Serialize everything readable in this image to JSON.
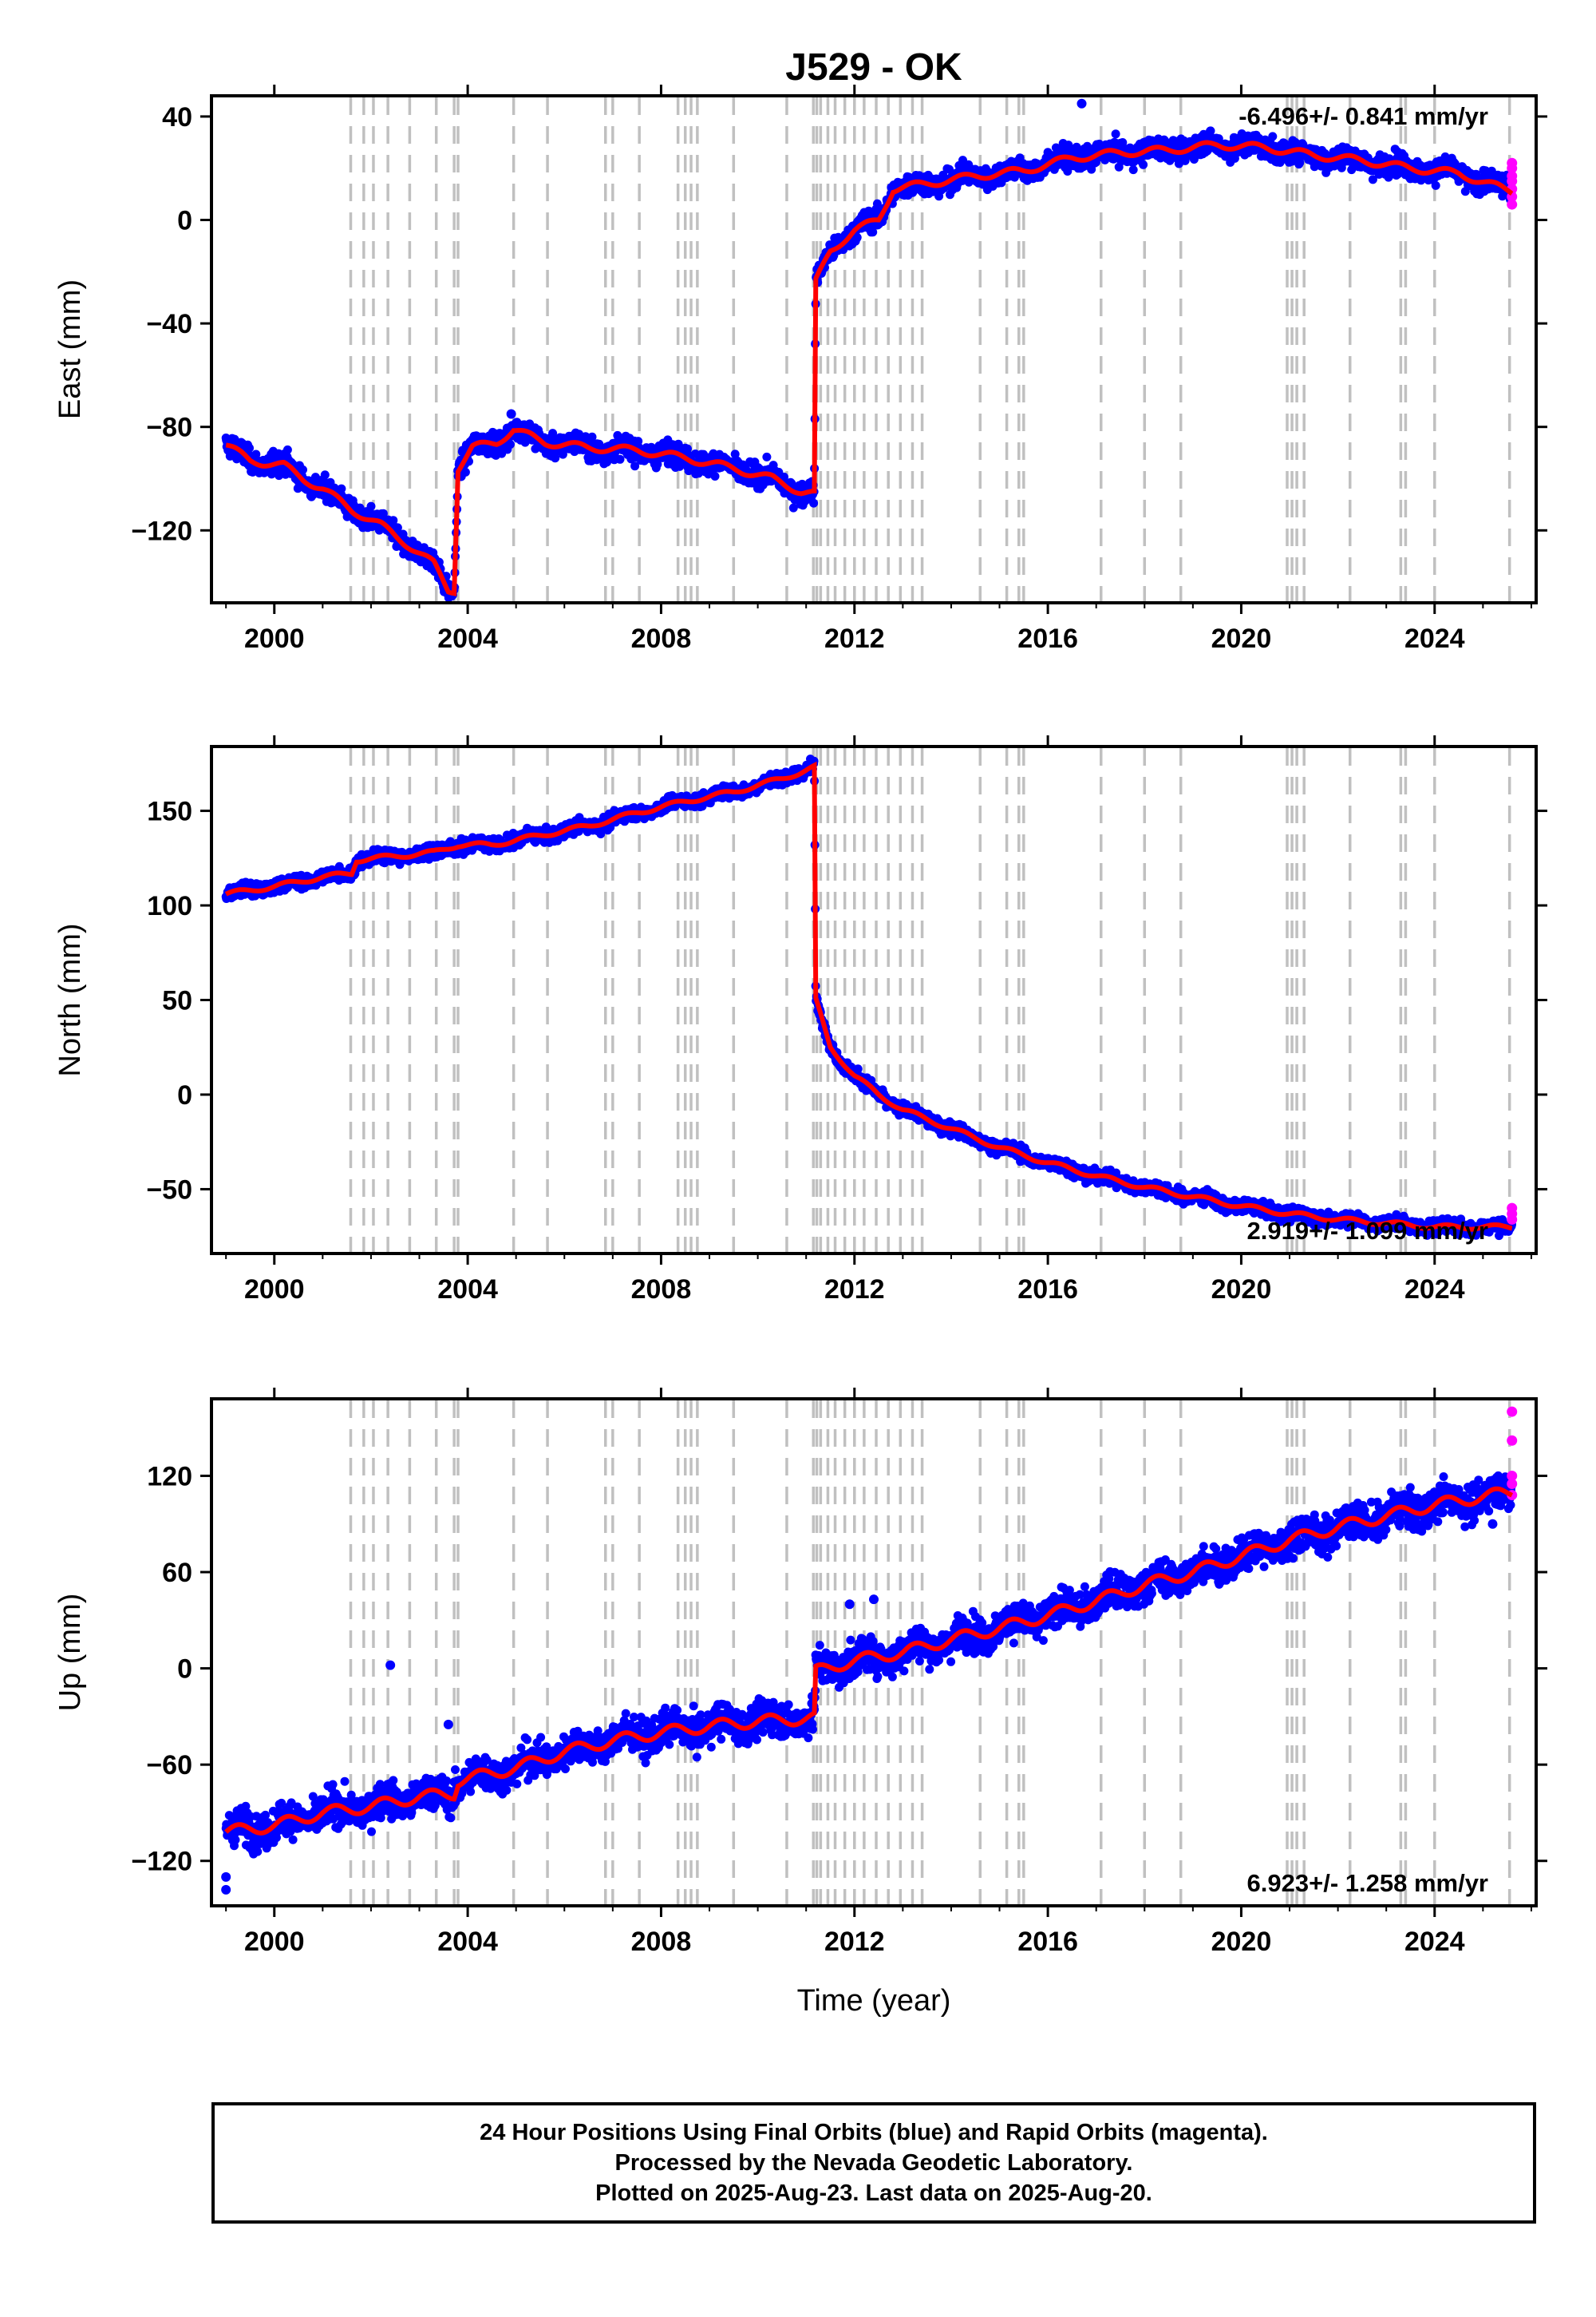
{
  "chart_data": {
    "type": "scatter",
    "title": "J529 - OK",
    "xlabel": "Time (year)",
    "xlim": [
      1998.7,
      2026.1
    ],
    "x_ticks": [
      2000,
      2004,
      2008,
      2012,
      2016,
      2020,
      2024
    ],
    "grid": false,
    "legend": "none",
    "series_colors": {
      "final_orbits": "#0000ff",
      "rapid_orbits": "#ff00ff",
      "model": "#ff0000",
      "event_lines": "#c0c0c0"
    },
    "event_lines": [
      2001.58,
      2001.85,
      2002.05,
      2002.35,
      2002.8,
      2003.35,
      2003.72,
      2003.8,
      2004.95,
      2005.65,
      2006.85,
      2007.0,
      2007.55,
      2008.35,
      2008.5,
      2008.62,
      2008.75,
      2009.5,
      2010.6,
      2011.15,
      2011.22,
      2011.3,
      2011.45,
      2011.6,
      2011.8,
      2012.0,
      2012.2,
      2012.45,
      2012.7,
      2012.95,
      2013.2,
      2013.4,
      2014.6,
      2015.15,
      2015.4,
      2015.5,
      2017.1,
      2018.0,
      2018.75,
      2020.95,
      2021.05,
      2021.15,
      2021.3,
      2022.25,
      2023.3,
      2023.4,
      2024.0,
      2025.55
    ],
    "panels": [
      {
        "id": "east",
        "ylabel": "East (mm)",
        "ylim": [
          -148,
          48
        ],
        "y_ticks": [
          40,
          0,
          -40,
          -80,
          -120
        ],
        "y_tick_labels": [
          "40",
          "0",
          "−40",
          "−80",
          "−120"
        ],
        "rate_label": "-6.496+/- 0.841 mm/yr",
        "rate_position": "top-right",
        "trend": [
          [
            1999.0,
            -87
          ],
          [
            1999.5,
            -93
          ],
          [
            2000.2,
            -95
          ],
          [
            2000.6,
            -100
          ],
          [
            2001.0,
            -104
          ],
          [
            2001.6,
            -112
          ],
          [
            2002.2,
            -118
          ],
          [
            2002.8,
            -126
          ],
          [
            2003.3,
            -133
          ],
          [
            2003.6,
            -143
          ],
          [
            2003.72,
            -143
          ],
          [
            2003.8,
            -96
          ],
          [
            2004.1,
            -88
          ],
          [
            2004.6,
            -86
          ],
          [
            2004.95,
            -81
          ],
          [
            2005.6,
            -86
          ],
          [
            2006.5,
            -88
          ],
          [
            2007.5,
            -89
          ],
          [
            2008.5,
            -92
          ],
          [
            2009.5,
            -96
          ],
          [
            2010.3,
            -100
          ],
          [
            2010.9,
            -105
          ],
          [
            2011.17,
            -106
          ],
          [
            2011.2,
            -24
          ],
          [
            2011.5,
            -12
          ],
          [
            2012.0,
            -4
          ],
          [
            2012.5,
            0
          ],
          [
            2012.8,
            12
          ],
          [
            2013.5,
            14
          ],
          [
            2014.5,
            17
          ],
          [
            2015.5,
            19
          ],
          [
            2016.5,
            24
          ],
          [
            2017.5,
            26
          ],
          [
            2018.5,
            27
          ],
          [
            2019.5,
            29
          ],
          [
            2020.5,
            28
          ],
          [
            2021.5,
            25
          ],
          [
            2022.5,
            23
          ],
          [
            2023.5,
            20
          ],
          [
            2024.5,
            18
          ],
          [
            2025.1,
            14
          ],
          [
            2025.6,
            11
          ]
        ],
        "noise": 3.5,
        "outliers": [
          [
            2016.7,
            45
          ],
          [
            2004.9,
            -75
          ]
        ],
        "rapid": [
          [
            2025.6,
            6
          ],
          [
            2025.6,
            9
          ],
          [
            2025.6,
            12
          ],
          [
            2025.6,
            15
          ],
          [
            2025.6,
            17
          ],
          [
            2025.6,
            20
          ],
          [
            2025.6,
            22
          ]
        ]
      },
      {
        "id": "north",
        "ylabel": "North (mm)",
        "ylim": [
          -84,
          184
        ],
        "y_ticks": [
          150,
          100,
          50,
          0,
          -50
        ],
        "y_tick_labels": [
          "150",
          "100",
          "50",
          "0",
          "−50"
        ],
        "rate_label": "2.919+/- 1.099 mm/yr",
        "rate_position": "bottom-right",
        "trend": [
          [
            1999.0,
            106
          ],
          [
            2000.0,
            110
          ],
          [
            2001.0,
            115
          ],
          [
            2001.6,
            117
          ],
          [
            2001.7,
            124
          ],
          [
            2002.5,
            126
          ],
          [
            2003.3,
            128
          ],
          [
            2003.8,
            132
          ],
          [
            2004.5,
            132
          ],
          [
            2005.5,
            137
          ],
          [
            2006.5,
            142
          ],
          [
            2007.5,
            149
          ],
          [
            2008.5,
            155
          ],
          [
            2009.5,
            160
          ],
          [
            2010.5,
            167
          ],
          [
            2011.17,
            173
          ],
          [
            2011.2,
            50
          ],
          [
            2011.5,
            25
          ],
          [
            2012.0,
            10
          ],
          [
            2012.5,
            0
          ],
          [
            2013.0,
            -8
          ],
          [
            2014.0,
            -18
          ],
          [
            2015.0,
            -28
          ],
          [
            2016.0,
            -36
          ],
          [
            2017.0,
            -43
          ],
          [
            2018.0,
            -49
          ],
          [
            2019.0,
            -54
          ],
          [
            2020.0,
            -59
          ],
          [
            2021.0,
            -63
          ],
          [
            2022.0,
            -66
          ],
          [
            2023.0,
            -68
          ],
          [
            2024.0,
            -70
          ],
          [
            2025.6,
            -70
          ]
        ],
        "noise": 3.0,
        "outliers": [],
        "rapid": [
          [
            2025.6,
            -66
          ],
          [
            2025.6,
            -63
          ],
          [
            2025.6,
            -60
          ]
        ]
      },
      {
        "id": "up",
        "ylabel": "Up (mm)",
        "ylim": [
          -148,
          168
        ],
        "y_ticks": [
          120,
          60,
          0,
          -60,
          -120
        ],
        "y_tick_labels": [
          "120",
          "60",
          "0",
          "−60",
          "−120"
        ],
        "rate_label": "6.923+/- 1.258 mm/yr",
        "rate_position": "bottom-right",
        "trend": [
          [
            1999.0,
            -102
          ],
          [
            2000.0,
            -98
          ],
          [
            2001.0,
            -90
          ],
          [
            2002.0,
            -86
          ],
          [
            2003.0,
            -80
          ],
          [
            2003.72,
            -78
          ],
          [
            2003.8,
            -70
          ],
          [
            2005.0,
            -62
          ],
          [
            2006.0,
            -52
          ],
          [
            2007.0,
            -45
          ],
          [
            2008.0,
            -40
          ],
          [
            2009.0,
            -36
          ],
          [
            2010.0,
            -33
          ],
          [
            2011.17,
            -31
          ],
          [
            2011.2,
            -2
          ],
          [
            2012.0,
            5
          ],
          [
            2013.0,
            10
          ],
          [
            2014.0,
            18
          ],
          [
            2015.0,
            25
          ],
          [
            2016.0,
            33
          ],
          [
            2017.0,
            42
          ],
          [
            2018.0,
            52
          ],
          [
            2019.0,
            60
          ],
          [
            2020.0,
            70
          ],
          [
            2021.0,
            80
          ],
          [
            2022.0,
            88
          ],
          [
            2023.0,
            95
          ],
          [
            2024.0,
            102
          ],
          [
            2025.6,
            110
          ]
        ],
        "noise": 9.0,
        "outliers": [
          [
            1999.0,
            -130
          ],
          [
            1999.0,
            -138
          ],
          [
            2002.4,
            2
          ],
          [
            2003.6,
            -35
          ],
          [
            2011.9,
            40
          ],
          [
            2012.4,
            43
          ],
          [
            2025.2,
            90
          ]
        ],
        "rapid": [
          [
            2025.6,
            160
          ],
          [
            2025.6,
            142
          ],
          [
            2025.6,
            120
          ],
          [
            2025.6,
            115
          ],
          [
            2025.6,
            108
          ]
        ]
      }
    ],
    "x_tick_labels": [
      "2000",
      "2004",
      "2008",
      "2012",
      "2016",
      "2020",
      "2024"
    ]
  },
  "footer": {
    "line1": "24 Hour Positions Using Final Orbits (blue) and Rapid Orbits (magenta).",
    "line2": "Processed by the Nevada Geodetic Laboratory.",
    "line3": "Plotted on 2025-Aug-23. Last data on 2025-Aug-20."
  }
}
